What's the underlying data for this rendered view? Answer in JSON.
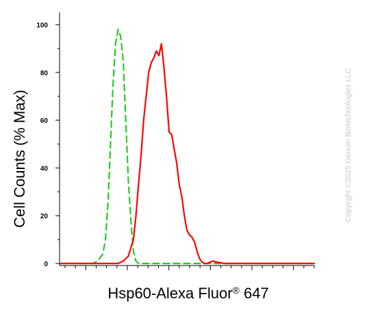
{
  "chart_data": {
    "type": "line",
    "title": "",
    "xlabel_main": "Hsp60-Alexa Fluor",
    "xlabel_reg": "®",
    "xlabel_tail": " 647",
    "ylabel": "Cell Counts (% Max)",
    "ylim": [
      0,
      100
    ],
    "yticks": [
      "0",
      "20",
      "40",
      "60",
      "80",
      "100"
    ],
    "xlim": [
      0,
      100
    ],
    "grid": false,
    "series": [
      {
        "color": "#22cc22",
        "style": "dashed",
        "x": [
          0,
          13,
          15,
          17,
          18,
          19,
          20,
          21,
          22,
          23,
          24,
          25,
          26,
          27,
          28,
          29,
          30,
          31,
          32,
          40,
          100
        ],
        "values": [
          0,
          0,
          1,
          4,
          10,
          25,
          50,
          75,
          92,
          98,
          95,
          85,
          60,
          35,
          18,
          5,
          1,
          0,
          0,
          0,
          0
        ]
      },
      {
        "color": "#ff0000",
        "style": "solid",
        "x": [
          0,
          20,
          23,
          25,
          27,
          29,
          30,
          31,
          32,
          33,
          34,
          35,
          36,
          37,
          38,
          39,
          40,
          41,
          42,
          43,
          44,
          45,
          46,
          47,
          48,
          49,
          50,
          51,
          52,
          53,
          54,
          55,
          56,
          57,
          58,
          59,
          60,
          62,
          65,
          67,
          69,
          71,
          73,
          80,
          100
        ],
        "values": [
          0,
          0,
          0,
          1,
          3,
          10,
          20,
          33,
          45,
          60,
          70,
          80,
          84,
          86,
          89,
          87,
          92,
          82,
          70,
          55,
          54,
          48,
          42,
          33,
          28,
          20,
          14,
          12,
          11,
          9,
          5,
          2,
          0.5,
          0,
          0,
          0.5,
          1,
          0.5,
          0,
          0,
          0,
          0,
          0,
          0,
          0
        ]
      }
    ]
  },
  "watermark": "Copyright ©2025 Genuin Biotechnologies LLC"
}
